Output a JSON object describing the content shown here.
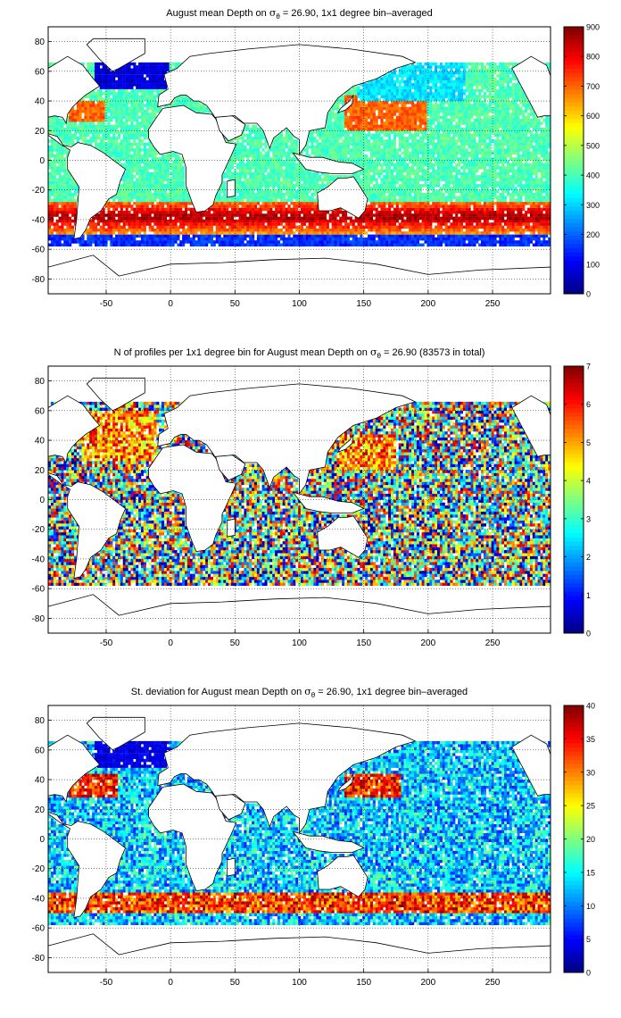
{
  "chart_data": [
    {
      "type": "heatmap",
      "title_prefix": "August mean Depth on ",
      "title_suffix": " = 26.90, 1x1 degree bin–averaged",
      "sigma_sub": "θ",
      "x_ticks": [
        -50,
        0,
        50,
        100,
        150,
        200,
        250
      ],
      "y_ticks": [
        80,
        60,
        40,
        20,
        0,
        -20,
        -40,
        -60,
        -80
      ],
      "xlim": [
        -95,
        295
      ],
      "ylim": [
        -90,
        90
      ],
      "colorbar_ticks": [
        0,
        100,
        200,
        300,
        400,
        500,
        600,
        700,
        800,
        900
      ],
      "clim": [
        0,
        900
      ],
      "grid": true,
      "colormap": "jet"
    },
    {
      "type": "heatmap",
      "title_prefix": "N of profiles per 1x1 degree bin for August mean Depth on ",
      "title_suffix": " = 26.90 (83573 in total)",
      "sigma_sub": "θ",
      "x_ticks": [
        -50,
        0,
        50,
        100,
        150,
        200,
        250
      ],
      "y_ticks": [
        80,
        60,
        40,
        20,
        0,
        -20,
        -40,
        -60,
        -80
      ],
      "xlim": [
        -95,
        295
      ],
      "ylim": [
        -90,
        90
      ],
      "colorbar_ticks": [
        0,
        1,
        2,
        3,
        4,
        5,
        6,
        7
      ],
      "clim": [
        0,
        7
      ],
      "grid": true,
      "colormap": "jet"
    },
    {
      "type": "heatmap",
      "title_prefix": "St. deviation for August mean Depth on ",
      "title_suffix": " = 26.90, 1x1 degree bin–averaged",
      "sigma_sub": "θ",
      "x_ticks": [
        -50,
        0,
        50,
        100,
        150,
        200,
        250
      ],
      "y_ticks": [
        80,
        60,
        40,
        20,
        0,
        -20,
        -40,
        -60,
        -80
      ],
      "xlim": [
        -95,
        295
      ],
      "ylim": [
        -90,
        90
      ],
      "colorbar_ticks": [
        0,
        5,
        10,
        15,
        20,
        25,
        30,
        35,
        40
      ],
      "clim": [
        0,
        40
      ],
      "grid": true,
      "colormap": "jet"
    }
  ]
}
